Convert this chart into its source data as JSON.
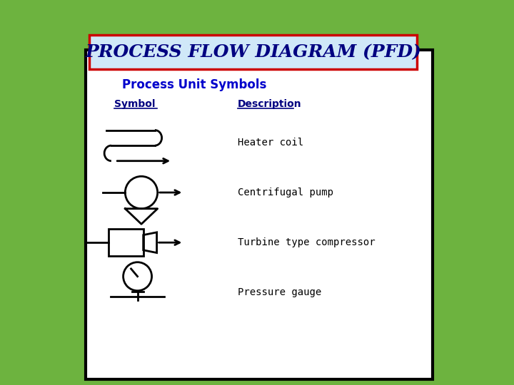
{
  "title": "PROCESS FLOW DIAGRAM (PFD)",
  "subtitle": "Process Unit Symbols",
  "col_symbol": "Symbol",
  "col_description": "Description",
  "descriptions": [
    "Heater coil",
    "Centrifugal pump",
    "Turbine type compressor",
    "Pressure gauge"
  ],
  "bg_outer": "#6db33f",
  "bg_inner": "#ffffff",
  "title_bg": "#d0e8f8",
  "title_border": "#cc0000",
  "title_color": "#000080",
  "subtitle_color": "#0000cc",
  "header_color": "#000080",
  "desc_color": "#000000",
  "lw": 2.0
}
